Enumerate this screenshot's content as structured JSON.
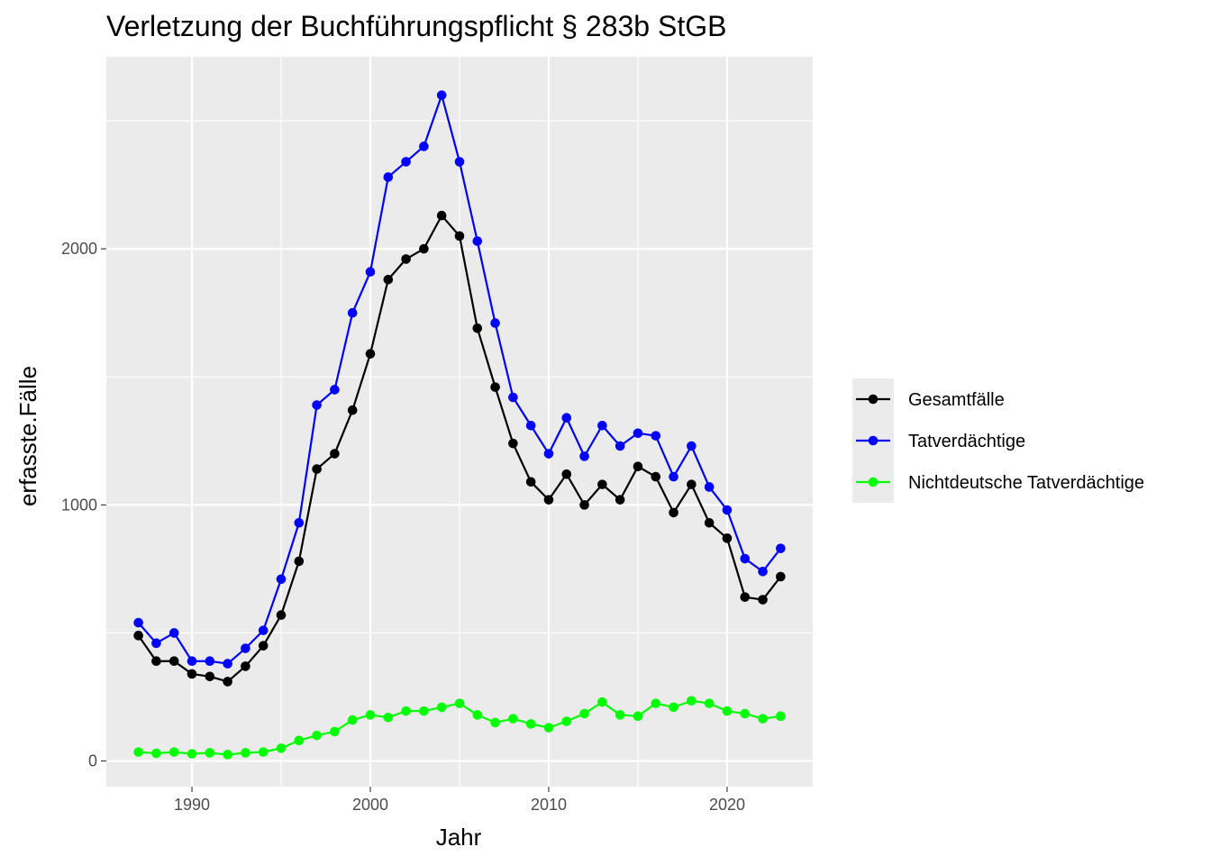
{
  "chart_data": {
    "type": "line",
    "title": "Verletzung der Buchführungspflicht § 283b StGB",
    "xlabel": "Jahr",
    "ylabel": "erfasste.Fälle",
    "x": [
      1987,
      1988,
      1989,
      1990,
      1991,
      1992,
      1993,
      1994,
      1995,
      1996,
      1997,
      1998,
      1999,
      2000,
      2001,
      2002,
      2003,
      2004,
      2005,
      2006,
      2007,
      2008,
      2009,
      2010,
      2011,
      2012,
      2013,
      2014,
      2015,
      2016,
      2017,
      2018,
      2019,
      2020,
      2021,
      2022,
      2023
    ],
    "xlim": [
      1985.2,
      2024.8
    ],
    "ylim": [
      -100,
      2750
    ],
    "x_ticks": [
      1990,
      2000,
      2010,
      2020
    ],
    "x_tick_labels": [
      "1990",
      "2000",
      "2010",
      "2020"
    ],
    "y_ticks": [
      0,
      1000,
      2000
    ],
    "y_tick_labels": [
      "0",
      "1000",
      "2000"
    ],
    "y_minor_ticks": [
      500,
      1500,
      2500
    ],
    "x_minor_ticks": [
      1995,
      2005,
      2015
    ],
    "grid": true,
    "legend_position": "right",
    "series": [
      {
        "name": "Gesamtfälle",
        "color": "#000000",
        "values": [
          490,
          390,
          390,
          340,
          330,
          310,
          370,
          450,
          570,
          780,
          1140,
          1200,
          1370,
          1590,
          1880,
          1960,
          2000,
          2130,
          2050,
          1690,
          1460,
          1240,
          1090,
          1020,
          1120,
          1000,
          1080,
          1020,
          1150,
          1110,
          970,
          1080,
          930,
          870,
          640,
          630,
          720
        ]
      },
      {
        "name": "Tatverdächtige",
        "color": "#0000ff",
        "values": [
          540,
          460,
          500,
          390,
          390,
          380,
          440,
          510,
          710,
          930,
          1390,
          1450,
          1750,
          1910,
          2280,
          2340,
          2400,
          2600,
          2340,
          2030,
          1710,
          1420,
          1310,
          1200,
          1340,
          1190,
          1310,
          1230,
          1280,
          1270,
          1110,
          1230,
          1070,
          980,
          790,
          740,
          830
        ]
      },
      {
        "name": "Nichtdeutsche Tatverdächtige",
        "color": "#00ff00",
        "values": [
          35,
          30,
          35,
          28,
          32,
          25,
          32,
          35,
          50,
          80,
          100,
          115,
          160,
          180,
          170,
          195,
          195,
          210,
          225,
          180,
          150,
          165,
          145,
          130,
          155,
          185,
          230,
          180,
          175,
          225,
          210,
          235,
          225,
          195,
          185,
          165,
          175
        ]
      }
    ]
  }
}
